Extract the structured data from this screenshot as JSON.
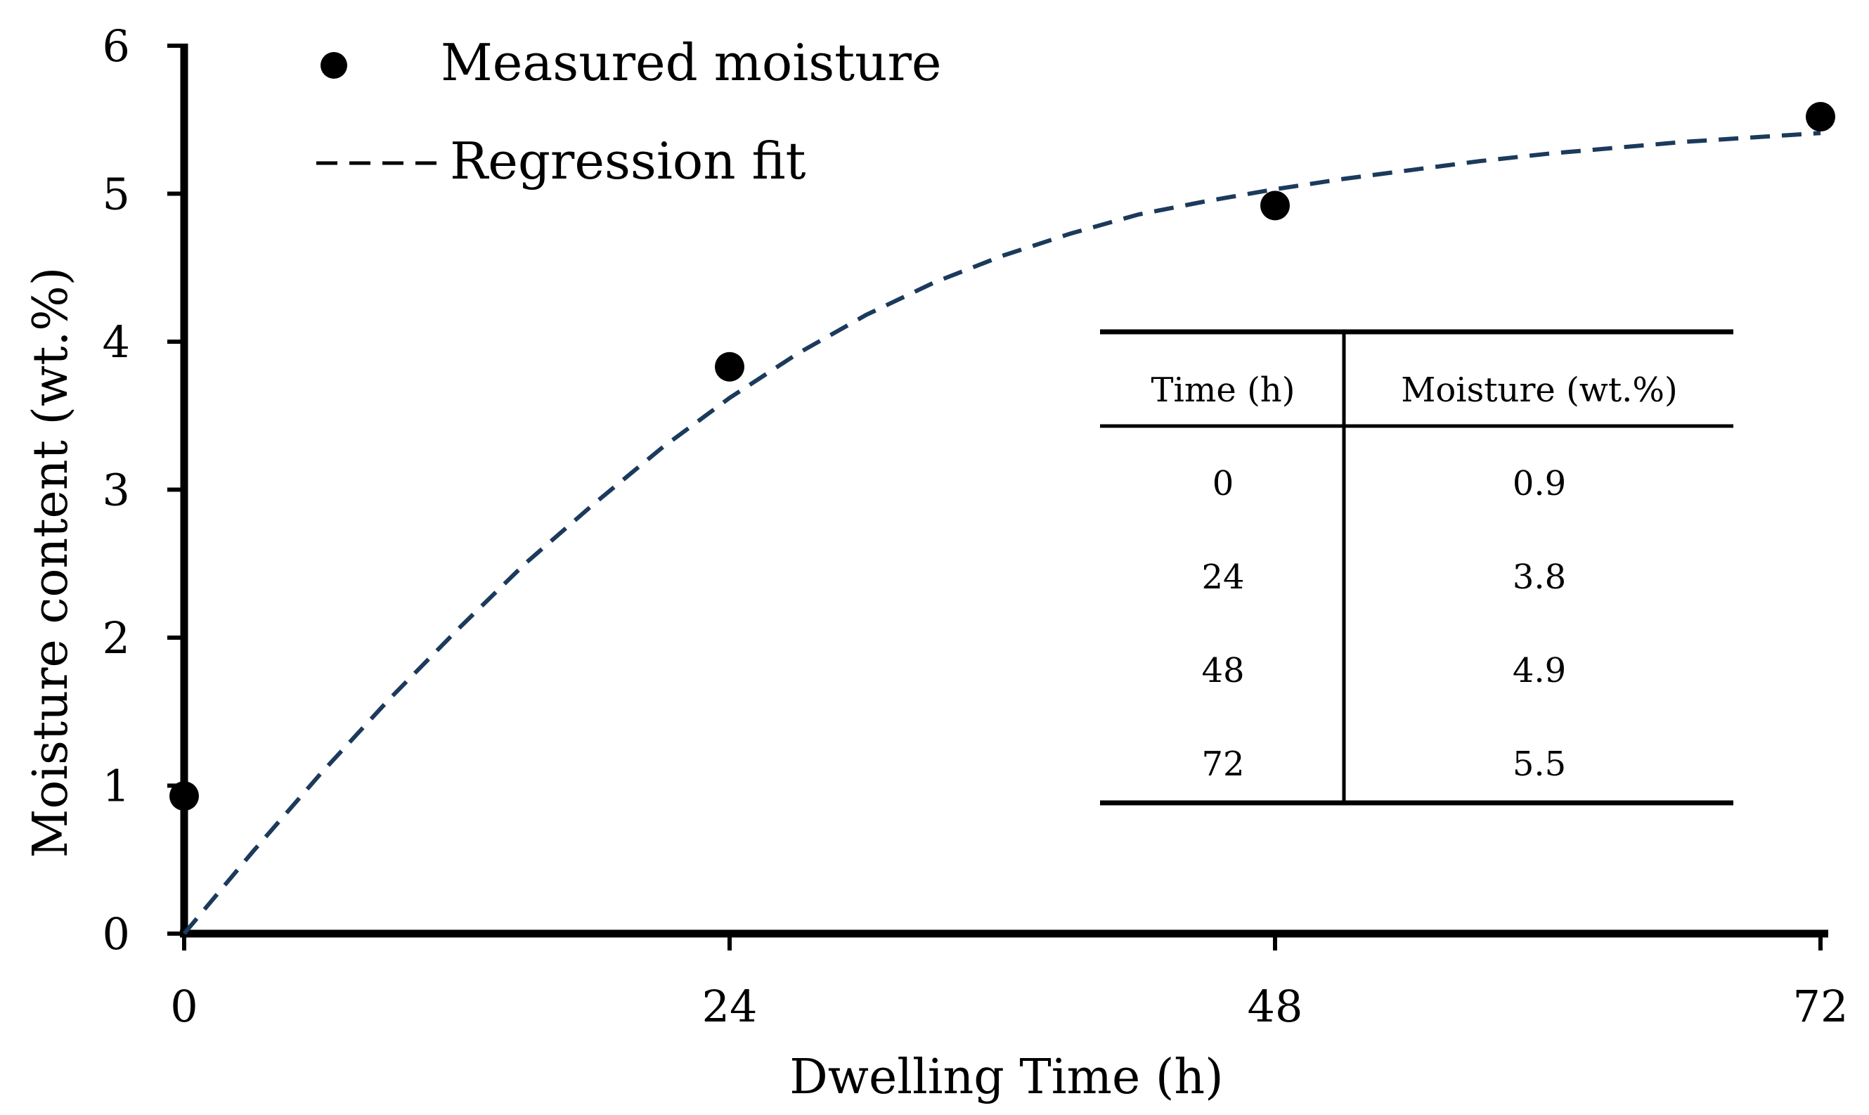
{
  "chart_data": {
    "type": "scatter",
    "title": "",
    "xlabel": "Dwelling Time (h)",
    "ylabel": "Moisture content (wt.%)",
    "xlim": [
      0,
      72
    ],
    "ylim": [
      0,
      6
    ],
    "x_ticks": [
      0,
      24,
      48,
      72
    ],
    "x_tick_labels": [
      "0",
      "24",
      "48",
      "72"
    ],
    "y_ticks": [
      0,
      1,
      2,
      3,
      4,
      5,
      6
    ],
    "y_tick_labels": [
      "0",
      "1",
      "2",
      "3",
      "4",
      "5",
      "6"
    ],
    "grid": false,
    "legend_position": "top-left",
    "series": [
      {
        "name": "Measured moisture",
        "kind": "scatter",
        "marker": "filled-circle",
        "color": "#000000",
        "x": [
          0,
          24,
          48,
          72
        ],
        "y": [
          0.93,
          3.83,
          4.92,
          5.52
        ]
      },
      {
        "name": "Regression fit",
        "kind": "line",
        "style": "dashed",
        "color": "#1b3a5c",
        "x": [
          0,
          3,
          6,
          9,
          12,
          15,
          18,
          21,
          24,
          27,
          30,
          33,
          36,
          39,
          42,
          45,
          48,
          51,
          54,
          57,
          60,
          63,
          66,
          69,
          72
        ],
        "y": [
          0.0,
          0.55,
          1.08,
          1.58,
          2.05,
          2.5,
          2.9,
          3.28,
          3.62,
          3.92,
          4.18,
          4.4,
          4.58,
          4.73,
          4.86,
          4.95,
          5.03,
          5.1,
          5.16,
          5.22,
          5.27,
          5.31,
          5.35,
          5.38,
          5.41
        ]
      }
    ]
  },
  "legend": {
    "measured_label": "Measured moisture",
    "regression_label": "Regression fit"
  },
  "inset_table": {
    "headers": [
      "Time (h)",
      "Moisture (wt.%)"
    ],
    "rows": [
      [
        "0",
        "0.9"
      ],
      [
        "24",
        "3.8"
      ],
      [
        "48",
        "4.9"
      ],
      [
        "72",
        "5.5"
      ]
    ]
  }
}
